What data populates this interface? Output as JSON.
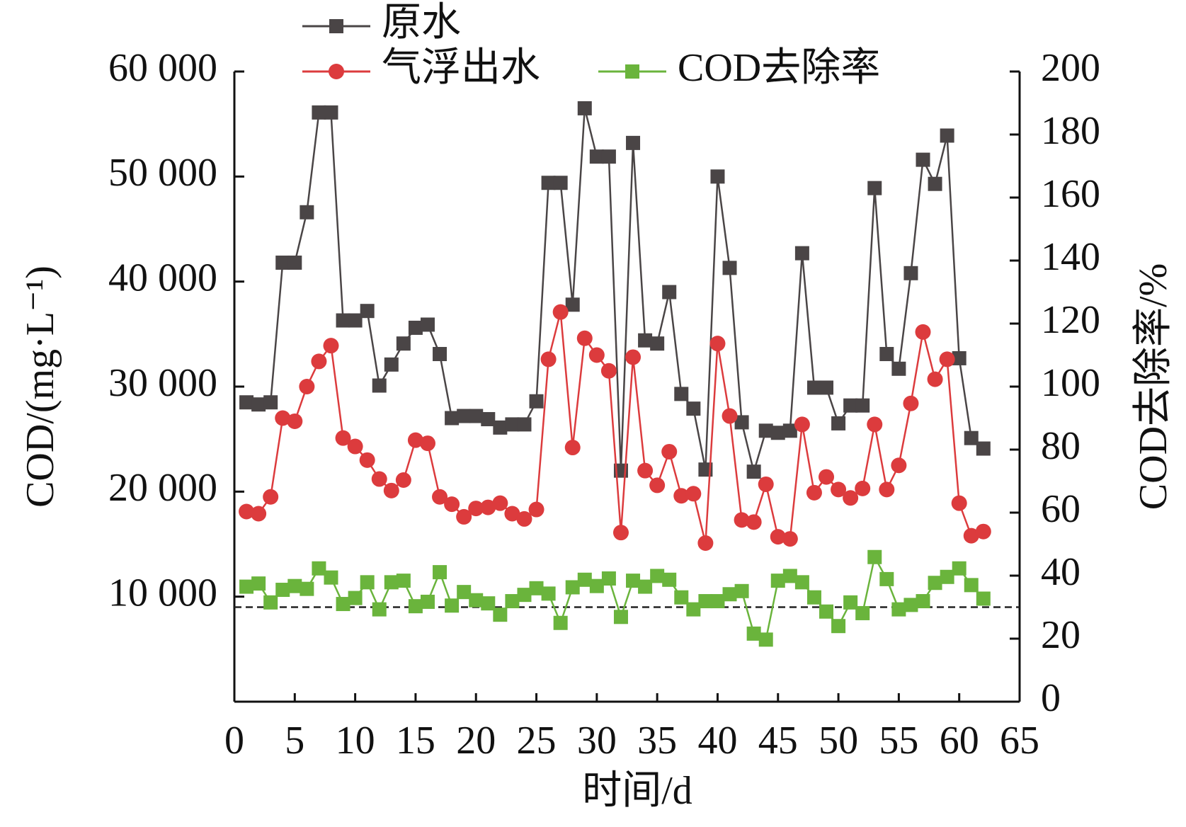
{
  "chart_data": {
    "type": "line",
    "xlabel": "时间/d",
    "ylabel": "COD/(mg·L⁻¹)",
    "y2label": "COD去除率/%",
    "x": [
      1,
      2,
      3,
      4,
      5,
      6,
      7,
      8,
      9,
      10,
      11,
      12,
      13,
      14,
      15,
      16,
      17,
      18,
      19,
      20,
      21,
      22,
      23,
      24,
      25,
      26,
      27,
      28,
      29,
      30,
      31,
      32,
      33,
      34,
      35,
      36,
      37,
      38,
      39,
      40,
      41,
      42,
      43,
      44,
      45,
      46,
      47,
      48,
      49,
      50,
      51,
      52,
      53,
      54,
      55,
      56,
      57,
      58,
      59,
      60,
      61,
      62
    ],
    "series": [
      {
        "name": "原水",
        "color": "#4a4546",
        "marker": "square",
        "axis": "y",
        "values": [
          28500,
          28300,
          28500,
          41800,
          41800,
          46600,
          56100,
          56100,
          36300,
          36300,
          37200,
          30100,
          32100,
          34100,
          35600,
          35900,
          33100,
          27000,
          27200,
          27200,
          26900,
          26100,
          26400,
          26400,
          28600,
          49400,
          49400,
          37800,
          56500,
          51900,
          51900,
          22000,
          53200,
          34400,
          34100,
          39000,
          29300,
          27900,
          22100,
          50000,
          41300,
          26600,
          21900,
          25800,
          25600,
          25800,
          42700,
          29900,
          29900,
          26500,
          28200,
          28200,
          48900,
          33100,
          31700,
          40800,
          51600,
          49300,
          53900,
          32700,
          25100,
          24100
        ]
      },
      {
        "name": "气浮出水",
        "color": "#dc3b3d",
        "marker": "circle",
        "axis": "y",
        "values": [
          18100,
          17900,
          19500,
          27000,
          26700,
          30000,
          32400,
          33900,
          25100,
          24300,
          23000,
          21200,
          20100,
          21100,
          24900,
          24600,
          19500,
          18800,
          17600,
          18400,
          18500,
          18900,
          17900,
          17400,
          18300,
          32600,
          37100,
          24200,
          34600,
          33000,
          31500,
          16100,
          32800,
          22000,
          20600,
          23800,
          19600,
          19800,
          15100,
          34100,
          27200,
          17300,
          17100,
          20700,
          15700,
          15500,
          26400,
          19900,
          21400,
          20200,
          19400,
          20300,
          26400,
          20200,
          22500,
          28400,
          35200,
          30700,
          32600,
          18900,
          15800,
          16200
        ]
      },
      {
        "name": "COD去除率",
        "color": "#6ab43c",
        "marker": "square",
        "axis": "y2",
        "values": [
          36.5,
          37.5,
          31.5,
          35.5,
          36.7,
          35.8,
          42.3,
          39.4,
          31.0,
          32.9,
          37.9,
          29.3,
          37.9,
          38.4,
          30.3,
          31.7,
          41.1,
          30.5,
          34.8,
          32.2,
          31.2,
          27.6,
          31.9,
          33.9,
          36.0,
          34.3,
          25.0,
          36.3,
          38.7,
          36.7,
          39.1,
          26.9,
          38.4,
          36.5,
          39.9,
          38.7,
          33.1,
          29.3,
          31.9,
          31.9,
          34.1,
          35.1,
          21.6,
          19.7,
          38.4,
          39.9,
          37.9,
          33.1,
          28.6,
          24.0,
          31.5,
          28.1,
          45.9,
          38.9,
          29.3,
          30.7,
          31.9,
          37.7,
          39.6,
          42.3,
          37.0,
          32.7
        ]
      }
    ],
    "reference_line": {
      "value": 30,
      "axis": "y2",
      "style": "dashed",
      "color": "#222222"
    },
    "xlim": [
      0,
      65
    ],
    "xticks": [
      0,
      5,
      10,
      15,
      20,
      25,
      30,
      35,
      40,
      45,
      50,
      55,
      60,
      65
    ],
    "ylim": [
      0,
      60000
    ],
    "yticks": [
      {
        "value": 10000,
        "label": "10 000"
      },
      {
        "value": 20000,
        "label": "20 000"
      },
      {
        "value": 30000,
        "label": "30 000"
      },
      {
        "value": 40000,
        "label": "40 000"
      },
      {
        "value": 50000,
        "label": "50 000"
      },
      {
        "value": 60000,
        "label": "60 000"
      }
    ],
    "y2lim": [
      0,
      200
    ],
    "y2ticks": [
      0,
      20,
      40,
      60,
      80,
      100,
      120,
      140,
      160,
      180,
      200
    ],
    "legend": "upper center",
    "grid": false
  }
}
